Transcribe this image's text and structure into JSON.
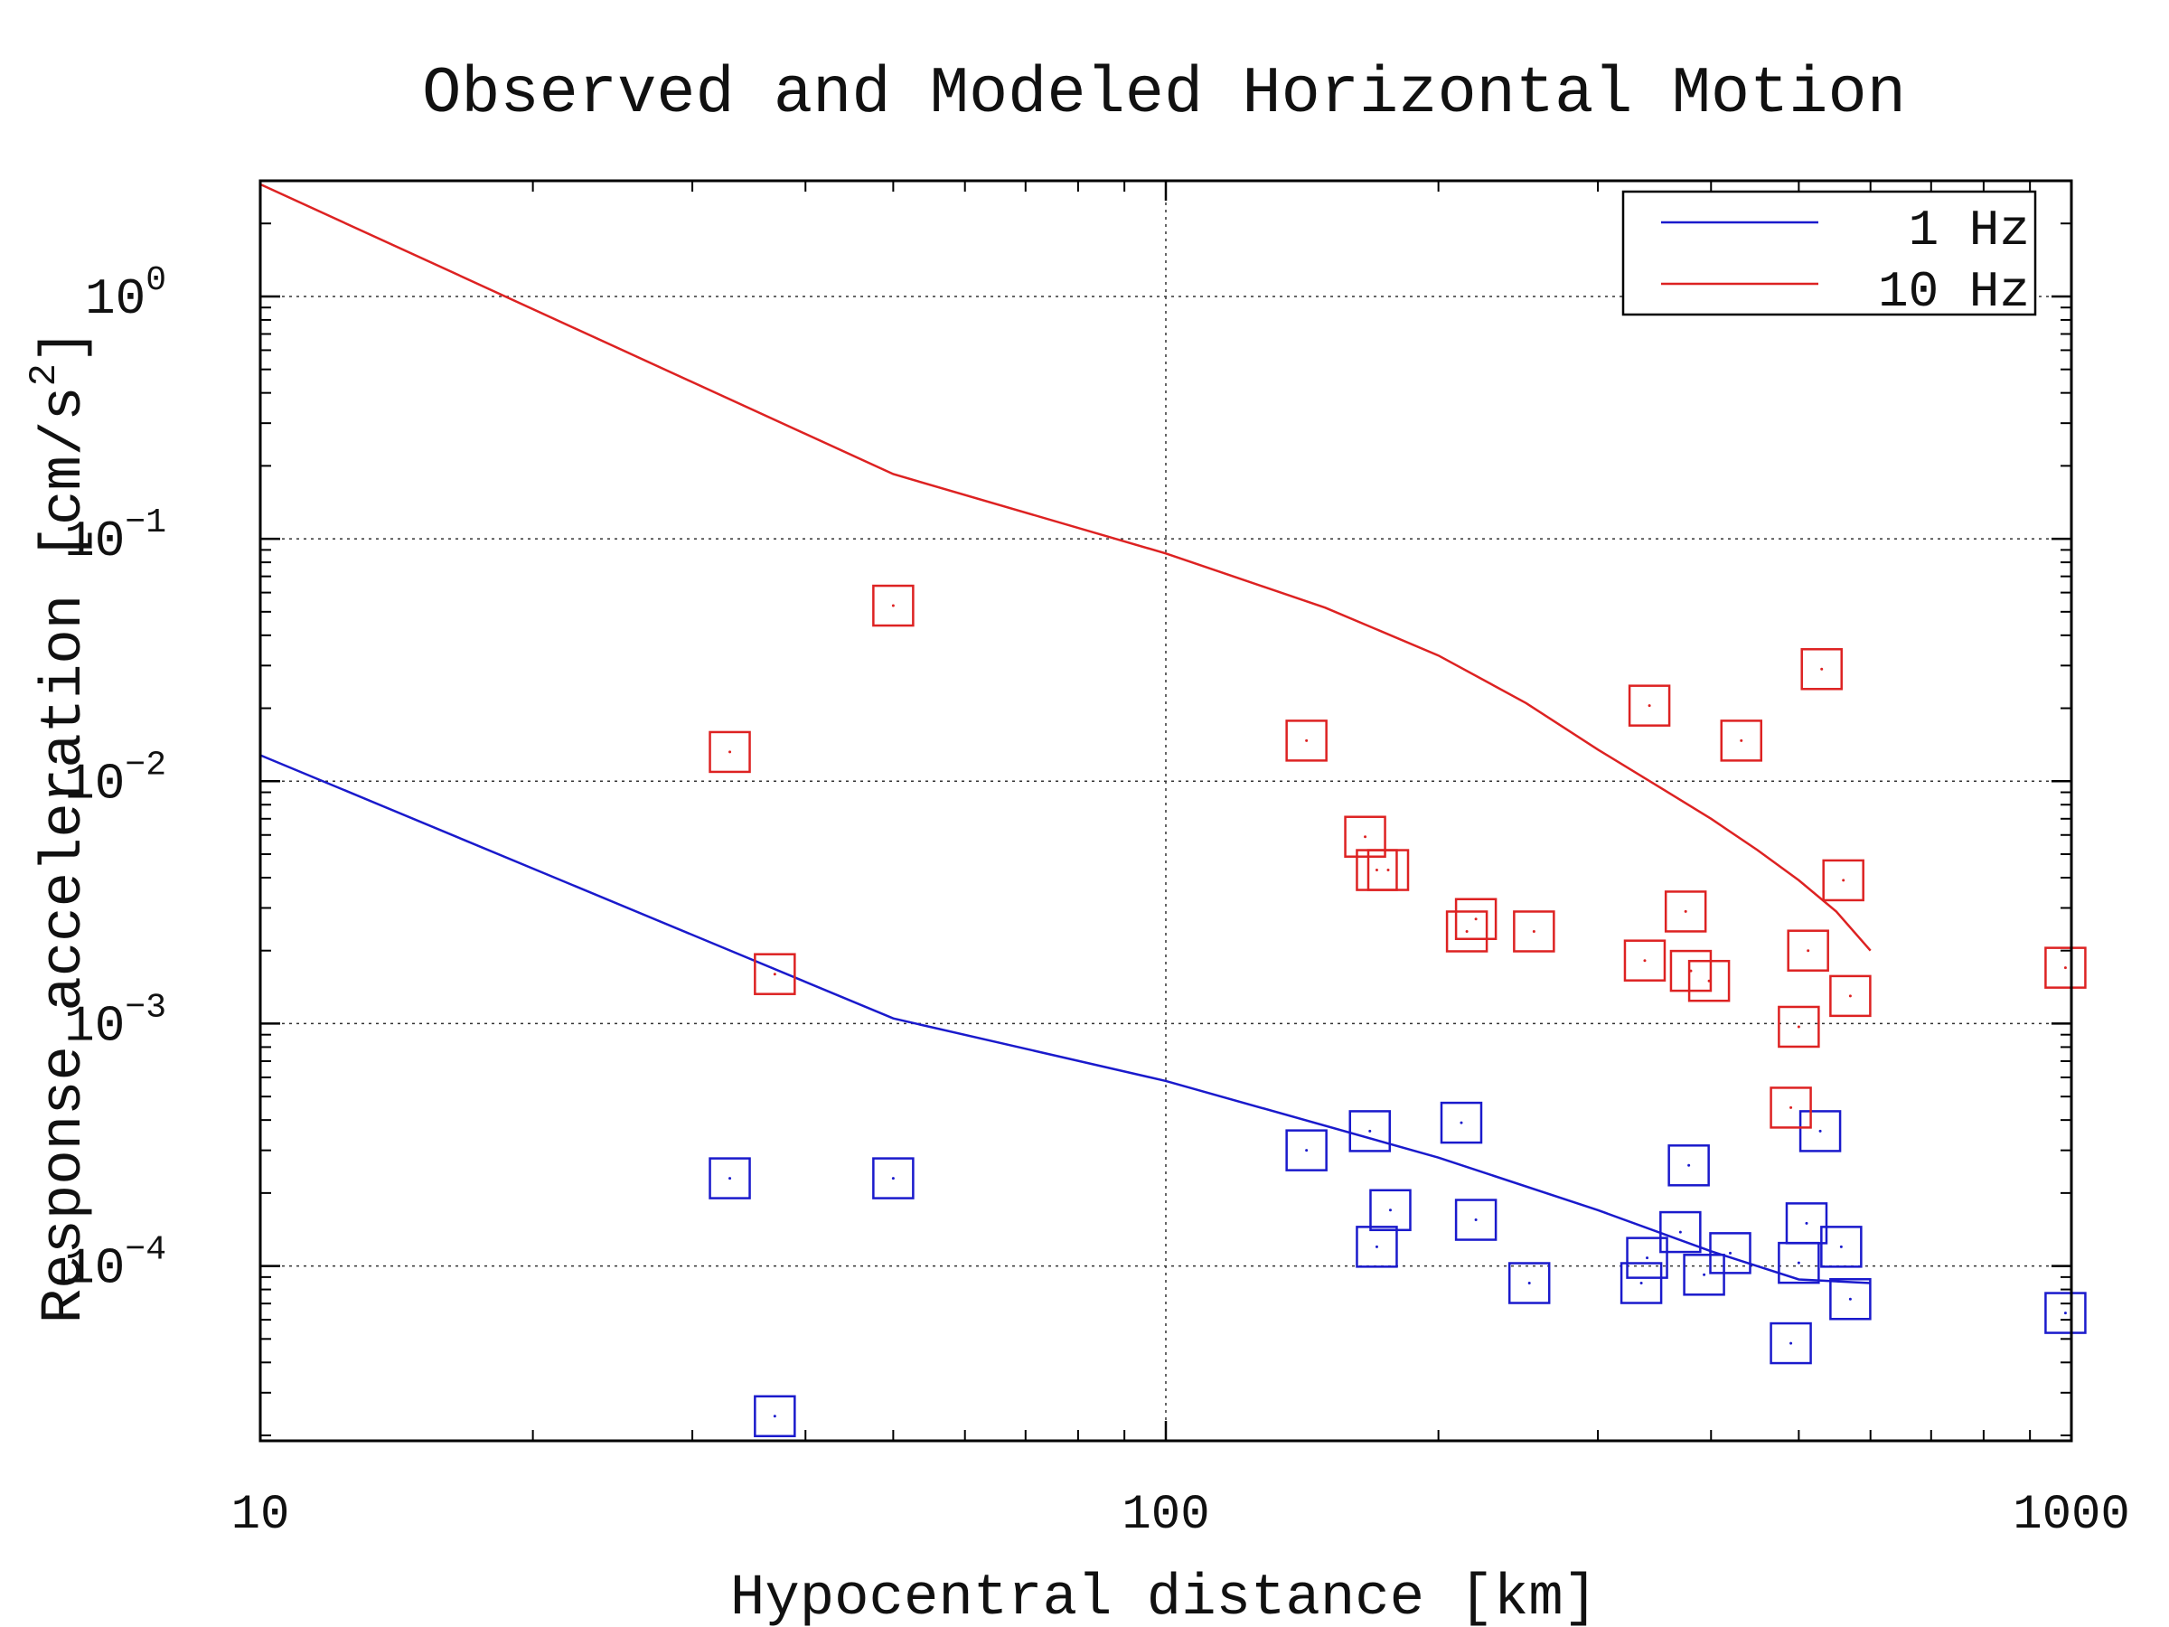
{
  "chart_data": {
    "type": "scatter",
    "title": "Observed and Modeled Horizontal Motion",
    "xlabel": "Hypocentral distance [km]",
    "ylabel_prefix": "Response acceleration [cm/s",
    "ylabel_superscript": "2",
    "ylabel_suffix": "]",
    "x_scale": "log",
    "y_scale": "log",
    "xlim": [
      10,
      1000
    ],
    "ylim": [
      1.9e-05,
      3.0
    ],
    "x_ticks": [
      {
        "value": 10,
        "label": "10"
      },
      {
        "value": 100,
        "label": "100"
      },
      {
        "value": 1000,
        "label": "1000"
      }
    ],
    "y_ticks": [
      {
        "value": 1,
        "base": "10",
        "exp": "0"
      },
      {
        "value": 0.1,
        "base": "10",
        "exp": "−1"
      },
      {
        "value": 0.01,
        "base": "10",
        "exp": "−2"
      },
      {
        "value": 0.001,
        "base": "10",
        "exp": "−3"
      },
      {
        "value": 0.0001,
        "base": "10",
        "exp": "−4"
      }
    ],
    "grid": true,
    "legend_position": "top-right",
    "colors": {
      "one_hz": "#1a1acc",
      "ten_hz": "#dd2222"
    },
    "model_lines": [
      {
        "name": "1 Hz",
        "color": "#1a1acc",
        "x": [
          10,
          50,
          100,
          200,
          300,
          400,
          500,
          600
        ],
        "y": [
          0.0128,
          0.00105,
          0.00058,
          0.00028,
          0.00017,
          0.000115,
          8.8e-05,
          8.5e-05
        ]
      },
      {
        "name": "10 Hz",
        "color": "#dd2222",
        "x": [
          10,
          50,
          100,
          150,
          200,
          250,
          300,
          350,
          400,
          450,
          500,
          550,
          600
        ],
        "y": [
          2.9,
          0.185,
          0.087,
          0.052,
          0.033,
          0.021,
          0.0135,
          0.0095,
          0.007,
          0.0052,
          0.0039,
          0.0029,
          0.002
        ]
      }
    ],
    "series": [
      {
        "name": "1 Hz",
        "color": "#1a1acc",
        "points": [
          {
            "x": 33,
            "y": 0.00023
          },
          {
            "x": 50,
            "y": 0.00023
          },
          {
            "x": 37,
            "y": 2.4e-05
          },
          {
            "x": 143,
            "y": 0.0003
          },
          {
            "x": 168,
            "y": 0.00036
          },
          {
            "x": 177,
            "y": 0.00017
          },
          {
            "x": 171,
            "y": 0.00012
          },
          {
            "x": 212,
            "y": 0.00039
          },
          {
            "x": 220,
            "y": 0.000155
          },
          {
            "x": 252,
            "y": 8.5e-05
          },
          {
            "x": 335,
            "y": 8.5e-05
          },
          {
            "x": 340,
            "y": 0.000108
          },
          {
            "x": 370,
            "y": 0.000138
          },
          {
            "x": 378,
            "y": 0.00026
          },
          {
            "x": 393,
            "y": 9.2e-05
          },
          {
            "x": 420,
            "y": 0.000113
          },
          {
            "x": 490,
            "y": 4.8e-05
          },
          {
            "x": 500,
            "y": 0.000103
          },
          {
            "x": 510,
            "y": 0.00015
          },
          {
            "x": 528,
            "y": 0.00036
          },
          {
            "x": 557,
            "y": 0.00012
          },
          {
            "x": 570,
            "y": 7.3e-05
          },
          {
            "x": 985,
            "y": 6.4e-05
          }
        ]
      },
      {
        "name": "10 Hz",
        "color": "#dd2222",
        "points": [
          {
            "x": 33,
            "y": 0.0132
          },
          {
            "x": 37,
            "y": 0.0016
          },
          {
            "x": 50,
            "y": 0.053
          },
          {
            "x": 143,
            "y": 0.0147
          },
          {
            "x": 166,
            "y": 0.0059
          },
          {
            "x": 171,
            "y": 0.0043
          },
          {
            "x": 176,
            "y": 0.0043
          },
          {
            "x": 215,
            "y": 0.0024
          },
          {
            "x": 220,
            "y": 0.0027
          },
          {
            "x": 255,
            "y": 0.0024
          },
          {
            "x": 342,
            "y": 0.0205
          },
          {
            "x": 338,
            "y": 0.00182
          },
          {
            "x": 375,
            "y": 0.0029
          },
          {
            "x": 380,
            "y": 0.00165
          },
          {
            "x": 398,
            "y": 0.0015
          },
          {
            "x": 432,
            "y": 0.0147
          },
          {
            "x": 490,
            "y": 0.00045
          },
          {
            "x": 500,
            "y": 0.00097
          },
          {
            "x": 512,
            "y": 0.002
          },
          {
            "x": 530,
            "y": 0.029
          },
          {
            "x": 560,
            "y": 0.0039
          },
          {
            "x": 570,
            "y": 0.0013
          },
          {
            "x": 985,
            "y": 0.0017
          }
        ]
      }
    ]
  }
}
